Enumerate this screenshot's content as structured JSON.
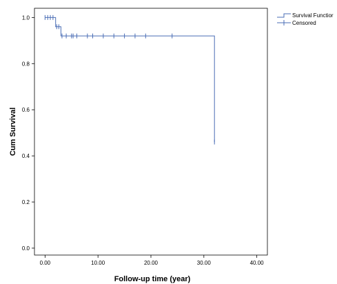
{
  "chart_data": {
    "type": "line",
    "xlabel": "Follow-up time (year)",
    "ylabel": "Cum Survival",
    "xlim": [
      -2,
      42
    ],
    "ylim": [
      -0.03,
      1.04
    ],
    "x_ticks": [
      0,
      10,
      20,
      30,
      40
    ],
    "x_tick_labels": [
      "0.00",
      "10.00",
      "20.00",
      "30.00",
      "40.00"
    ],
    "y_ticks": [
      0,
      0.2,
      0.4,
      0.6,
      0.8,
      1.0
    ],
    "y_tick_labels": [
      "0.0",
      "0.2",
      "0.4",
      "0.6",
      "0.8",
      "1.0"
    ],
    "grid": false,
    "legend_position": "top-right",
    "line_color": "#4a6db5",
    "series": [
      {
        "name": "Survival Functior",
        "step": [
          [
            0,
            1.0
          ],
          [
            2.0,
            1.0
          ],
          [
            2.0,
            0.96
          ],
          [
            3.0,
            0.96
          ],
          [
            3.0,
            0.92
          ],
          [
            32.0,
            0.92
          ],
          [
            32.0,
            0.46
          ]
        ]
      },
      {
        "name": "Censored",
        "points": [
          [
            0.0,
            1.0
          ],
          [
            0.5,
            1.0
          ],
          [
            1.0,
            1.0
          ],
          [
            1.5,
            1.0
          ],
          [
            2.2,
            0.96
          ],
          [
            2.6,
            0.96
          ],
          [
            3.2,
            0.92
          ],
          [
            4.0,
            0.92
          ],
          [
            5.0,
            0.92
          ],
          [
            5.3,
            0.92
          ],
          [
            6.0,
            0.92
          ],
          [
            8.0,
            0.92
          ],
          [
            9.0,
            0.92
          ],
          [
            11.0,
            0.92
          ],
          [
            13.0,
            0.92
          ],
          [
            15.0,
            0.92
          ],
          [
            17.0,
            0.92
          ],
          [
            19.0,
            0.92
          ],
          [
            24.0,
            0.92
          ],
          [
            32.0,
            0.46
          ]
        ]
      }
    ]
  }
}
